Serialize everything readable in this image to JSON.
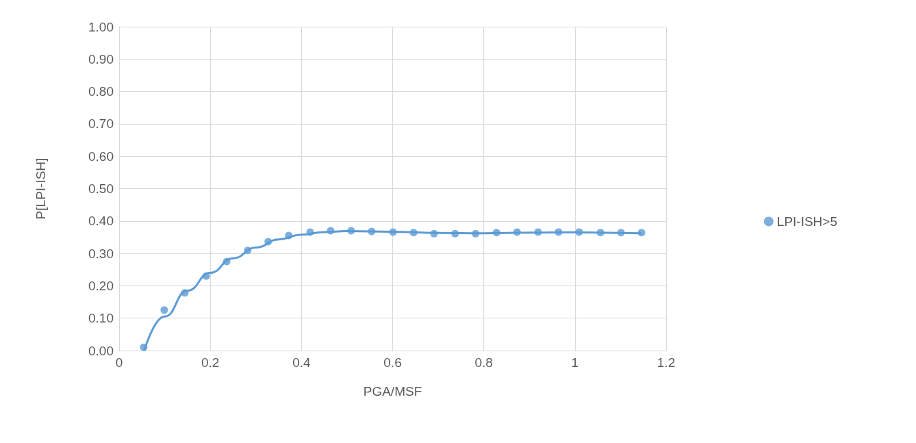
{
  "chart_data": {
    "type": "scatter",
    "xlabel": "PGA/MSF",
    "ylabel": "P[LPI-ISH]",
    "xlim": [
      0,
      1.2
    ],
    "xticks": [
      0,
      0.2,
      0.4,
      0.6,
      0.8,
      1,
      1.2
    ],
    "ylim": [
      0,
      1
    ],
    "yticks": [
      {
        "value": 0,
        "label": "0.00"
      },
      {
        "value": 0.1,
        "label": "0.10"
      },
      {
        "value": 0.2,
        "label": "0.20"
      },
      {
        "value": 0.3,
        "label": "0.30"
      },
      {
        "value": 0.4,
        "label": "0.40"
      },
      {
        "value": 0.5,
        "label": "0.50"
      },
      {
        "value": 0.6,
        "label": "0.60"
      },
      {
        "value": 0.7,
        "label": "0.70"
      },
      {
        "value": 0.8,
        "label": "0.80"
      },
      {
        "value": 0.9,
        "label": "0.90"
      },
      {
        "value": 1,
        "label": "1.00"
      }
    ],
    "grid": true,
    "legend": "right",
    "marker": "circle",
    "series": [
      {
        "name": "LPI-ISH>5",
        "color": "#5b9bd5",
        "x": [
          0.054,
          0.099,
          0.144,
          0.191,
          0.236,
          0.282,
          0.327,
          0.372,
          0.419,
          0.464,
          0.509,
          0.554,
          0.601,
          0.646,
          0.691,
          0.737,
          0.782,
          0.828,
          0.873,
          0.919,
          0.964,
          1.009,
          1.056,
          1.101,
          1.146
        ],
        "values": [
          0.01,
          0.125,
          0.178,
          0.23,
          0.275,
          0.309,
          0.336,
          0.355,
          0.366,
          0.37,
          0.37,
          0.368,
          0.366,
          0.364,
          0.361,
          0.361,
          0.361,
          0.364,
          0.366,
          0.366,
          0.366,
          0.366,
          0.364,
          0.364,
          0.364
        ]
      },
      {
        "type": "line",
        "marker": "none",
        "line_style": "solid",
        "color": "#5b9bd5",
        "x": [
          0.055,
          0.1,
          0.15,
          0.2,
          0.25,
          0.3,
          0.35,
          0.4,
          0.45,
          0.5,
          0.6,
          0.7,
          0.8,
          0.9,
          1.0,
          1.1,
          1.146
        ],
        "values": [
          0.0,
          0.105,
          0.185,
          0.24,
          0.285,
          0.318,
          0.343,
          0.358,
          0.366,
          0.369,
          0.367,
          0.363,
          0.362,
          0.364,
          0.365,
          0.363,
          0.362
        ]
      }
    ]
  }
}
